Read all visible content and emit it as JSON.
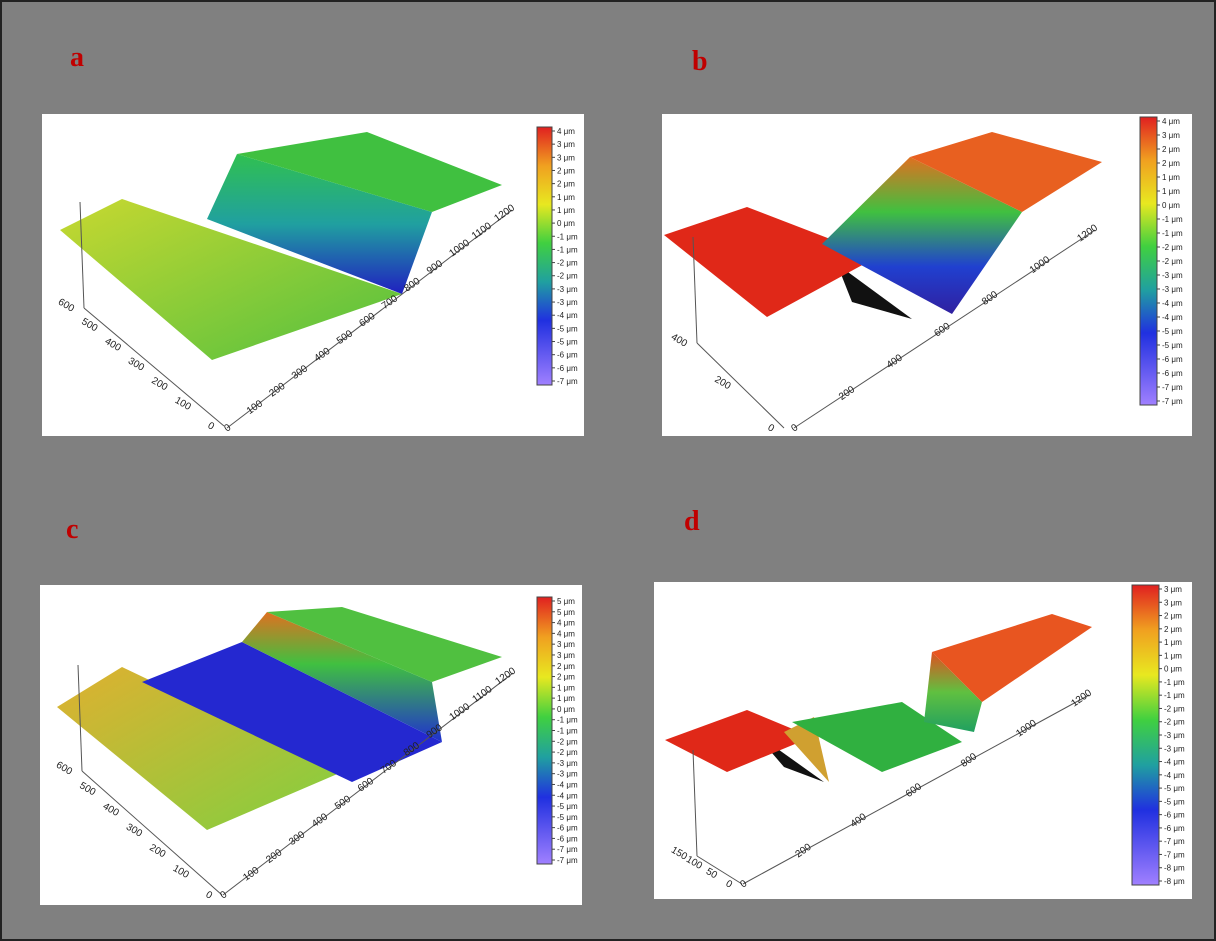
{
  "panels": [
    {
      "label": "a",
      "colorbar": [
        "4 μm",
        "3 μm",
        "3 μm",
        "2 μm",
        "2 μm",
        "1 μm",
        "1 μm",
        "0 μm",
        "-1 μm",
        "-1 μm",
        "-2 μm",
        "-2 μm",
        "-3 μm",
        "-3 μm",
        "-4 μm",
        "-5 μm",
        "-5 μm",
        "-6 μm",
        "-6 μm",
        "-7 μm"
      ],
      "x_ticks": [
        "0",
        "100",
        "200",
        "300",
        "400",
        "500",
        "600",
        "700",
        "800",
        "900",
        "1000",
        "1100",
        "1200"
      ],
      "y_ticks": [
        "0",
        "100",
        "200",
        "300",
        "400",
        "500",
        "600"
      ]
    },
    {
      "label": "b",
      "colorbar": [
        "4 μm",
        "3 μm",
        "2 μm",
        "2 μm",
        "1 μm",
        "1 μm",
        "0 μm",
        "-1 μm",
        "-1 μm",
        "-2 μm",
        "-2 μm",
        "-3 μm",
        "-3 μm",
        "-4 μm",
        "-4 μm",
        "-5 μm",
        "-5 μm",
        "-6 μm",
        "-6 μm",
        "-7 μm",
        "-7 μm"
      ],
      "x_ticks": [
        "0",
        "200",
        "400",
        "600",
        "800",
        "1000",
        "1200"
      ],
      "y_ticks": [
        "0",
        "200",
        "400"
      ]
    },
    {
      "label": "c",
      "colorbar": [
        "5 μm",
        "5 μm",
        "4 μm",
        "4 μm",
        "3 μm",
        "3 μm",
        "2 μm",
        "2 μm",
        "1 μm",
        "1 μm",
        "0 μm",
        "-1 μm",
        "-1 μm",
        "-2 μm",
        "-2 μm",
        "-3 μm",
        "-3 μm",
        "-4 μm",
        "-4 μm",
        "-5 μm",
        "-5 μm",
        "-6 μm",
        "-6 μm",
        "-7 μm",
        "-7 μm"
      ],
      "x_ticks": [
        "0",
        "100",
        "200",
        "300",
        "400",
        "500",
        "600",
        "700",
        "800",
        "900",
        "1000",
        "1100",
        "1200"
      ],
      "y_ticks": [
        "0",
        "100",
        "200",
        "300",
        "400",
        "500",
        "600"
      ]
    },
    {
      "label": "d",
      "colorbar": [
        "3 μm",
        "3 μm",
        "2 μm",
        "2 μm",
        "1 μm",
        "1 μm",
        "0 μm",
        "-1 μm",
        "-1 μm",
        "-2 μm",
        "-2 μm",
        "-3 μm",
        "-3 μm",
        "-4 μm",
        "-4 μm",
        "-5 μm",
        "-5 μm",
        "-6 μm",
        "-6 μm",
        "-7 μm",
        "-7 μm",
        "-8 μm",
        "-8 μm"
      ],
      "x_ticks": [
        "0",
        "200",
        "400",
        "600",
        "800",
        "1000",
        "1200"
      ],
      "y_ticks": [
        "0",
        "50",
        "100",
        "150"
      ]
    }
  ]
}
